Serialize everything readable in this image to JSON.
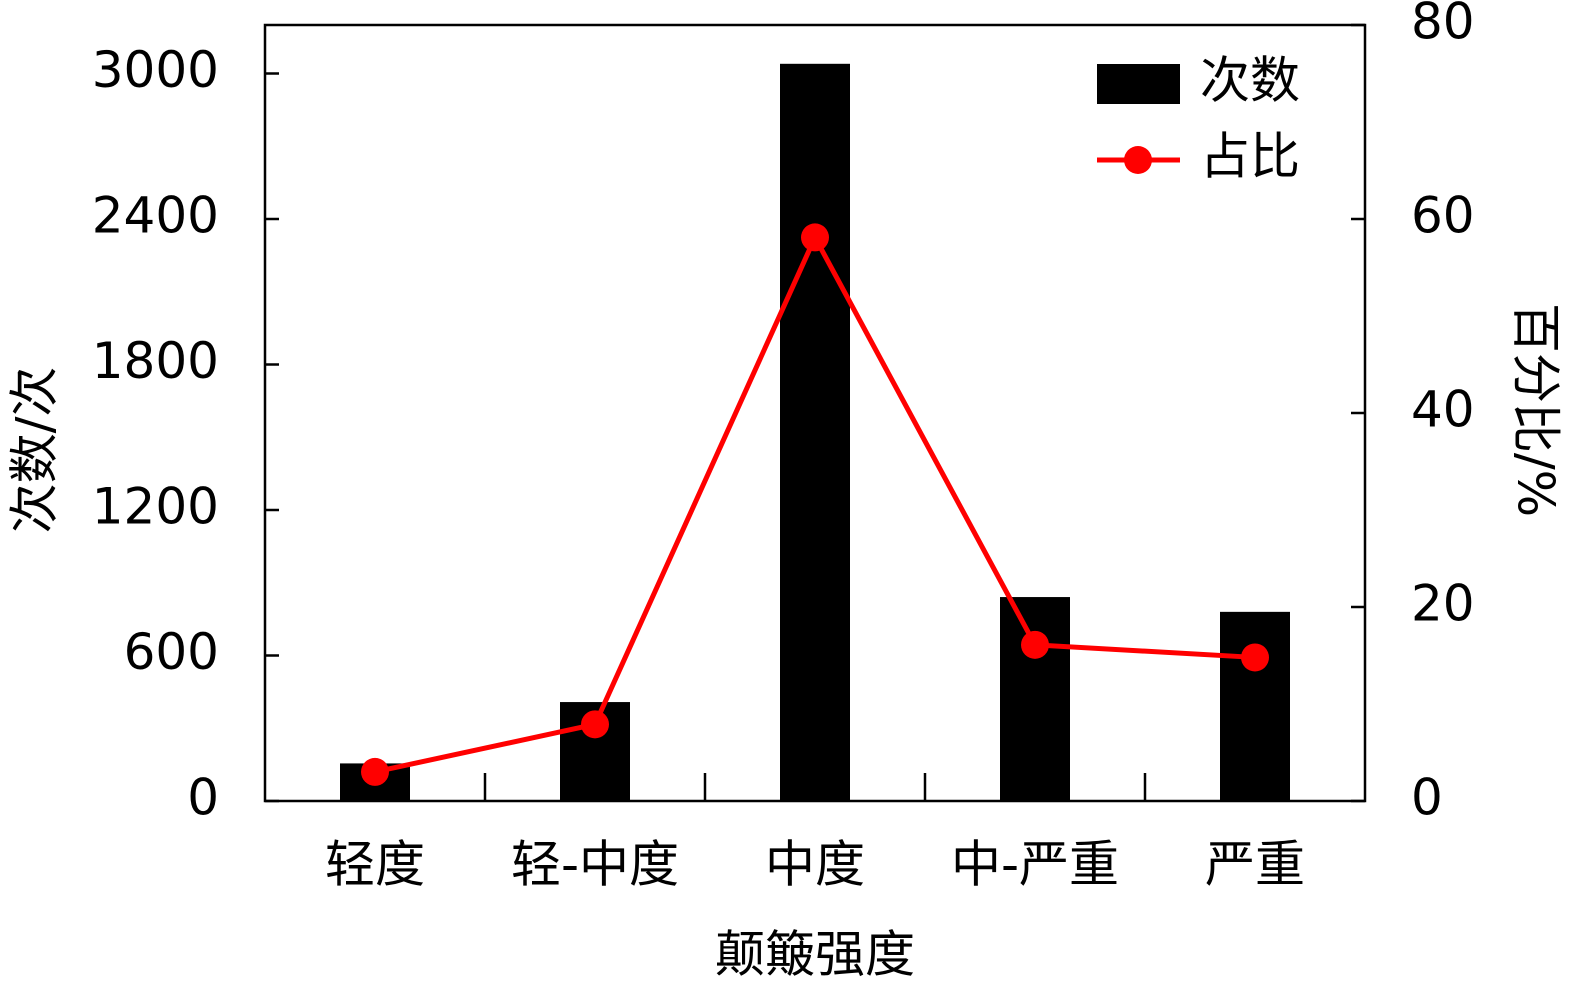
{
  "chart_data": {
    "type": "bar_line",
    "xlabel": "颠簸强度",
    "ylabel": "次数/次",
    "y2label": "百分比/%",
    "categories": [
      "轻度",
      "轻-中度",
      "中度",
      "中-严重",
      "严重"
    ],
    "series": [
      {
        "name": "次数",
        "type": "bar",
        "color": "#000000",
        "values": [
          155,
          408,
          3040,
          841,
          780
        ]
      },
      {
        "name": "占比",
        "type": "line",
        "color": "#ff0000",
        "axis": "y2",
        "values": [
          3.0,
          7.9,
          58.1,
          16.1,
          14.8
        ]
      }
    ],
    "ylim": [
      0,
      3200
    ],
    "yticks": [
      0,
      600,
      1200,
      1800,
      2400,
      3000
    ],
    "y2lim": [
      0,
      80
    ],
    "y2ticks": [
      0,
      20,
      40,
      60,
      80
    ]
  }
}
